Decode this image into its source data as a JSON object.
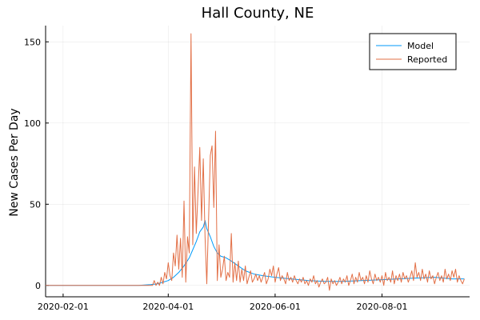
{
  "chart_data": {
    "type": "line",
    "title": "Hall County, NE",
    "xlabel": "",
    "ylabel": "New Cases Per Day",
    "x_range": [
      "2020-01-22",
      "2020-09-20"
    ],
    "ylim": [
      -7,
      160
    ],
    "x_ticks": [
      "2020-02-01",
      "2020-04-01",
      "2020-06-01",
      "2020-08-01"
    ],
    "y_ticks": [
      0,
      50,
      100,
      150
    ],
    "grid": true,
    "legend_position": "top-right",
    "series": [
      {
        "name": "Model",
        "color": "#009AFA",
        "points": [
          [
            "2020-01-22",
            0
          ],
          [
            "2020-03-15",
            0
          ],
          [
            "2020-03-22",
            0.5
          ],
          [
            "2020-03-26",
            1
          ],
          [
            "2020-03-29",
            2
          ],
          [
            "2020-04-01",
            3
          ],
          [
            "2020-04-04",
            5
          ],
          [
            "2020-04-07",
            8
          ],
          [
            "2020-04-10",
            12
          ],
          [
            "2020-04-13",
            17
          ],
          [
            "2020-04-15",
            22
          ],
          [
            "2020-04-17",
            27
          ],
          [
            "2020-04-19",
            33
          ],
          [
            "2020-04-21",
            36
          ],
          [
            "2020-04-22",
            40
          ],
          [
            "2020-04-23",
            35
          ],
          [
            "2020-04-25",
            30
          ],
          [
            "2020-04-27",
            24
          ],
          [
            "2020-04-29",
            20
          ],
          [
            "2020-05-01",
            18
          ],
          [
            "2020-05-04",
            17
          ],
          [
            "2020-05-07",
            15
          ],
          [
            "2020-05-11",
            12
          ],
          [
            "2020-05-15",
            9
          ],
          [
            "2020-05-20",
            7
          ],
          [
            "2020-05-25",
            6
          ],
          [
            "2020-06-01",
            5
          ],
          [
            "2020-06-10",
            4
          ],
          [
            "2020-06-20",
            3
          ],
          [
            "2020-06-30",
            2.5
          ],
          [
            "2020-07-10",
            2.5
          ],
          [
            "2020-07-20",
            3
          ],
          [
            "2020-07-31",
            3.5
          ],
          [
            "2020-08-10",
            4
          ],
          [
            "2020-08-20",
            4.5
          ],
          [
            "2020-08-31",
            5
          ],
          [
            "2020-09-10",
            4
          ],
          [
            "2020-09-17",
            4
          ]
        ]
      },
      {
        "name": "Reported",
        "color": "#E26F46",
        "points": [
          [
            "2020-01-22",
            0
          ],
          [
            "2020-03-22",
            0
          ],
          [
            "2020-03-23",
            0
          ],
          [
            "2020-03-24",
            3
          ],
          [
            "2020-03-25",
            0
          ],
          [
            "2020-03-26",
            2
          ],
          [
            "2020-03-27",
            0
          ],
          [
            "2020-03-28",
            5
          ],
          [
            "2020-03-29",
            1
          ],
          [
            "2020-03-30",
            8
          ],
          [
            "2020-03-31",
            4
          ],
          [
            "2020-04-01",
            14
          ],
          [
            "2020-04-02",
            6
          ],
          [
            "2020-04-03",
            3
          ],
          [
            "2020-04-04",
            20
          ],
          [
            "2020-04-05",
            12
          ],
          [
            "2020-04-06",
            31
          ],
          [
            "2020-04-07",
            10
          ],
          [
            "2020-04-08",
            29
          ],
          [
            "2020-04-09",
            5
          ],
          [
            "2020-04-10",
            52
          ],
          [
            "2020-04-11",
            2
          ],
          [
            "2020-04-12",
            30
          ],
          [
            "2020-04-13",
            20
          ],
          [
            "2020-04-14",
            155
          ],
          [
            "2020-04-15",
            25
          ],
          [
            "2020-04-16",
            73
          ],
          [
            "2020-04-17",
            32
          ],
          [
            "2020-04-18",
            58
          ],
          [
            "2020-04-19",
            85
          ],
          [
            "2020-04-20",
            40
          ],
          [
            "2020-04-21",
            78
          ],
          [
            "2020-04-22",
            30
          ],
          [
            "2020-04-23",
            1
          ],
          [
            "2020-04-24",
            40
          ],
          [
            "2020-04-25",
            80
          ],
          [
            "2020-04-26",
            86
          ],
          [
            "2020-04-27",
            48
          ],
          [
            "2020-04-28",
            95
          ],
          [
            "2020-04-29",
            3
          ],
          [
            "2020-04-30",
            25
          ],
          [
            "2020-05-01",
            5
          ],
          [
            "2020-05-02",
            10
          ],
          [
            "2020-05-03",
            18
          ],
          [
            "2020-05-04",
            3
          ],
          [
            "2020-05-05",
            8
          ],
          [
            "2020-05-06",
            5
          ],
          [
            "2020-05-07",
            32
          ],
          [
            "2020-05-08",
            2
          ],
          [
            "2020-05-09",
            14
          ],
          [
            "2020-05-10",
            3
          ],
          [
            "2020-05-11",
            15
          ],
          [
            "2020-05-12",
            2
          ],
          [
            "2020-05-13",
            10
          ],
          [
            "2020-05-14",
            3
          ],
          [
            "2020-05-15",
            12
          ],
          [
            "2020-05-16",
            1
          ],
          [
            "2020-05-17",
            5
          ],
          [
            "2020-05-18",
            9
          ],
          [
            "2020-05-19",
            2
          ],
          [
            "2020-05-20",
            4
          ],
          [
            "2020-05-21",
            7
          ],
          [
            "2020-05-22",
            3
          ],
          [
            "2020-05-23",
            6
          ],
          [
            "2020-05-24",
            2
          ],
          [
            "2020-05-25",
            5
          ],
          [
            "2020-05-26",
            8
          ],
          [
            "2020-05-27",
            1
          ],
          [
            "2020-05-28",
            4
          ],
          [
            "2020-05-29",
            10
          ],
          [
            "2020-05-30",
            6
          ],
          [
            "2020-05-31",
            12
          ],
          [
            "2020-06-01",
            2
          ],
          [
            "2020-06-02",
            7
          ],
          [
            "2020-06-03",
            11
          ],
          [
            "2020-06-04",
            3
          ],
          [
            "2020-06-05",
            6
          ],
          [
            "2020-06-06",
            4
          ],
          [
            "2020-06-07",
            1
          ],
          [
            "2020-06-08",
            8
          ],
          [
            "2020-06-09",
            3
          ],
          [
            "2020-06-10",
            5
          ],
          [
            "2020-06-11",
            2
          ],
          [
            "2020-06-12",
            6
          ],
          [
            "2020-06-13",
            3
          ],
          [
            "2020-06-14",
            1
          ],
          [
            "2020-06-15",
            4
          ],
          [
            "2020-06-16",
            2
          ],
          [
            "2020-06-17",
            5
          ],
          [
            "2020-06-18",
            1
          ],
          [
            "2020-06-19",
            3
          ],
          [
            "2020-06-20",
            0
          ],
          [
            "2020-06-21",
            4
          ],
          [
            "2020-06-22",
            2
          ],
          [
            "2020-06-23",
            6
          ],
          [
            "2020-06-24",
            1
          ],
          [
            "2020-06-25",
            3
          ],
          [
            "2020-06-26",
            -1
          ],
          [
            "2020-06-27",
            2
          ],
          [
            "2020-06-28",
            4
          ],
          [
            "2020-06-29",
            1
          ],
          [
            "2020-06-30",
            2
          ],
          [
            "2020-07-01",
            5
          ],
          [
            "2020-07-02",
            -3
          ],
          [
            "2020-07-03",
            4
          ],
          [
            "2020-07-04",
            1
          ],
          [
            "2020-07-05",
            3
          ],
          [
            "2020-07-06",
            0
          ],
          [
            "2020-07-07",
            2
          ],
          [
            "2020-07-08",
            5
          ],
          [
            "2020-07-09",
            1
          ],
          [
            "2020-07-10",
            4
          ],
          [
            "2020-07-11",
            2
          ],
          [
            "2020-07-12",
            6
          ],
          [
            "2020-07-13",
            0
          ],
          [
            "2020-07-14",
            3
          ],
          [
            "2020-07-15",
            7
          ],
          [
            "2020-07-16",
            1
          ],
          [
            "2020-07-17",
            5
          ],
          [
            "2020-07-18",
            2
          ],
          [
            "2020-07-19",
            8
          ],
          [
            "2020-07-20",
            3
          ],
          [
            "2020-07-21",
            5
          ],
          [
            "2020-07-22",
            1
          ],
          [
            "2020-07-23",
            6
          ],
          [
            "2020-07-24",
            2
          ],
          [
            "2020-07-25",
            9
          ],
          [
            "2020-07-26",
            4
          ],
          [
            "2020-07-27",
            1
          ],
          [
            "2020-07-28",
            7
          ],
          [
            "2020-07-29",
            3
          ],
          [
            "2020-07-30",
            5
          ],
          [
            "2020-07-31",
            2
          ],
          [
            "2020-08-01",
            6
          ],
          [
            "2020-08-02",
            0
          ],
          [
            "2020-08-03",
            8
          ],
          [
            "2020-08-04",
            3
          ],
          [
            "2020-08-05",
            5
          ],
          [
            "2020-08-06",
            2
          ],
          [
            "2020-08-07",
            9
          ],
          [
            "2020-08-08",
            1
          ],
          [
            "2020-08-09",
            6
          ],
          [
            "2020-08-10",
            3
          ],
          [
            "2020-08-11",
            7
          ],
          [
            "2020-08-12",
            2
          ],
          [
            "2020-08-13",
            8
          ],
          [
            "2020-08-14",
            4
          ],
          [
            "2020-08-15",
            6
          ],
          [
            "2020-08-16",
            2
          ],
          [
            "2020-08-17",
            5
          ],
          [
            "2020-08-18",
            9
          ],
          [
            "2020-08-19",
            3
          ],
          [
            "2020-08-20",
            14
          ],
          [
            "2020-08-21",
            5
          ],
          [
            "2020-08-22",
            8
          ],
          [
            "2020-08-23",
            3
          ],
          [
            "2020-08-24",
            10
          ],
          [
            "2020-08-25",
            4
          ],
          [
            "2020-08-26",
            7
          ],
          [
            "2020-08-27",
            2
          ],
          [
            "2020-08-28",
            9
          ],
          [
            "2020-08-29",
            4
          ],
          [
            "2020-08-30",
            6
          ],
          [
            "2020-08-31",
            1
          ],
          [
            "2020-09-01",
            5
          ],
          [
            "2020-09-02",
            8
          ],
          [
            "2020-09-03",
            3
          ],
          [
            "2020-09-04",
            6
          ],
          [
            "2020-09-05",
            2
          ],
          [
            "2020-09-06",
            10
          ],
          [
            "2020-09-07",
            4
          ],
          [
            "2020-09-08",
            7
          ],
          [
            "2020-09-09",
            3
          ],
          [
            "2020-09-10",
            9
          ],
          [
            "2020-09-11",
            5
          ],
          [
            "2020-09-12",
            10
          ],
          [
            "2020-09-13",
            2
          ],
          [
            "2020-09-14",
            6
          ],
          [
            "2020-09-15",
            3
          ],
          [
            "2020-09-16",
            1
          ],
          [
            "2020-09-17",
            4
          ]
        ]
      }
    ]
  }
}
